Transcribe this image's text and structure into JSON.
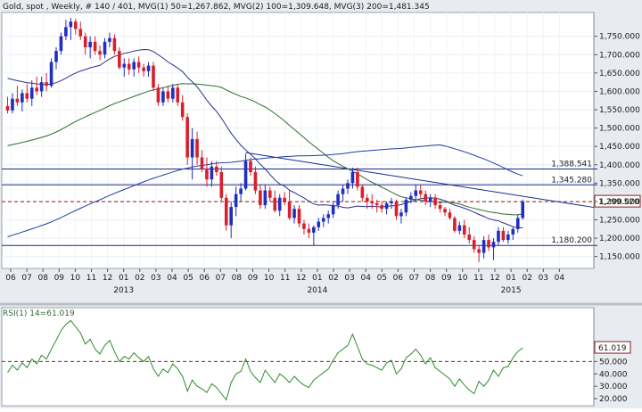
{
  "header": {
    "title": "Gold, spot , Weekly, # 140 / 401, MVG(1) 50=1,267.862, MVG(2) 100=1,309.648, MVG(3) 200=1,481.345",
    "rsi_title": "RSI(1) 14=61.019"
  },
  "colors": {
    "up": "#1f2fbf",
    "down": "#d81f2b",
    "ma50": "#2a2f8f",
    "ma100": "#2f6b2f",
    "ma200": "#1f3fa0",
    "hline": "#1c2a8c",
    "dash": "#8a1f1f",
    "rsi": "#2d8a2d"
  },
  "chart_data": [
    {
      "type": "candlestick",
      "title": "Gold, spot , Weekly",
      "ylim": [
        1120,
        1810
      ],
      "y_ticks": [
        "1,750.000",
        "1,700.000",
        "1,650.000",
        "1,600.000",
        "1,550.000",
        "1,500.000",
        "1,450.000",
        "1,400.000",
        "1,350.000",
        "1,300.000",
        "1,250.000",
        "1,200.000",
        "1,150.000"
      ],
      "y_tick_values": [
        1750,
        1700,
        1650,
        1600,
        1550,
        1500,
        1450,
        1400,
        1350,
        1300,
        1250,
        1200,
        1150
      ],
      "x_month_labels": [
        "06",
        "07",
        "08",
        "09",
        "10",
        "11",
        "12",
        "01",
        "02",
        "03",
        "04",
        "05",
        "06",
        "07",
        "08",
        "09",
        "10",
        "11",
        "12",
        "01",
        "02",
        "03",
        "04",
        "05",
        "06",
        "07",
        "08",
        "09",
        "10",
        "11",
        "12",
        "01",
        "02",
        "03",
        "04"
      ],
      "x_year_labels": [
        "2013",
        "2014",
        "2015"
      ],
      "x_year_label_month_index": [
        7,
        19,
        31
      ],
      "horizontal_levels": [
        {
          "label": "1,388.541",
          "value": 1388.541
        },
        {
          "label": "1,345.280",
          "value": 1345.28
        },
        {
          "label": "1,180.200",
          "value": 1180.2
        }
      ],
      "current_price_label": "1,299.520",
      "current_price": 1299.52,
      "trendline": {
        "from_week": 49,
        "from_value": 1433,
        "to_week": 110,
        "to_value": 1306
      },
      "ohlc": [
        [
          1560,
          1585,
          1540,
          1548
        ],
        [
          1548,
          1595,
          1540,
          1580
        ],
        [
          1580,
          1615,
          1560,
          1570
        ],
        [
          1570,
          1605,
          1545,
          1595
        ],
        [
          1595,
          1620,
          1570,
          1580
        ],
        [
          1580,
          1630,
          1560,
          1610
        ],
        [
          1610,
          1640,
          1590,
          1600
        ],
        [
          1600,
          1640,
          1585,
          1625
        ],
        [
          1625,
          1650,
          1600,
          1615
        ],
        [
          1615,
          1690,
          1610,
          1680
        ],
        [
          1680,
          1720,
          1660,
          1710
        ],
        [
          1710,
          1760,
          1700,
          1750
        ],
        [
          1750,
          1795,
          1740,
          1775
        ],
        [
          1775,
          1800,
          1740,
          1790
        ],
        [
          1790,
          1798,
          1755,
          1770
        ],
        [
          1770,
          1790,
          1740,
          1750
        ],
        [
          1750,
          1760,
          1700,
          1720
        ],
        [
          1720,
          1750,
          1690,
          1735
        ],
        [
          1735,
          1750,
          1700,
          1710
        ],
        [
          1710,
          1725,
          1685,
          1700
        ],
        [
          1700,
          1745,
          1690,
          1735
        ],
        [
          1735,
          1760,
          1720,
          1745
        ],
        [
          1745,
          1755,
          1700,
          1710
        ],
        [
          1710,
          1720,
          1660,
          1665
        ],
        [
          1665,
          1690,
          1640,
          1675
        ],
        [
          1675,
          1690,
          1645,
          1660
        ],
        [
          1660,
          1690,
          1640,
          1680
        ],
        [
          1680,
          1695,
          1650,
          1665
        ],
        [
          1665,
          1675,
          1640,
          1655
        ],
        [
          1655,
          1680,
          1640,
          1670
        ],
        [
          1670,
          1680,
          1600,
          1610
        ],
        [
          1610,
          1620,
          1560,
          1570
        ],
        [
          1570,
          1610,
          1560,
          1600
        ],
        [
          1600,
          1615,
          1570,
          1580
        ],
        [
          1580,
          1620,
          1570,
          1610
        ],
        [
          1610,
          1620,
          1560,
          1570
        ],
        [
          1570,
          1590,
          1520,
          1530
        ],
        [
          1530,
          1540,
          1400,
          1420
        ],
        [
          1420,
          1500,
          1360,
          1470
        ],
        [
          1470,
          1490,
          1400,
          1420
        ],
        [
          1420,
          1440,
          1380,
          1390
        ],
        [
          1390,
          1420,
          1340,
          1360
        ],
        [
          1360,
          1410,
          1340,
          1395
        ],
        [
          1395,
          1410,
          1370,
          1380
        ],
        [
          1380,
          1395,
          1300,
          1310
        ],
        [
          1310,
          1320,
          1220,
          1235
        ],
        [
          1235,
          1300,
          1200,
          1285
        ],
        [
          1285,
          1340,
          1260,
          1320
        ],
        [
          1320,
          1350,
          1300,
          1335
        ],
        [
          1335,
          1430,
          1330,
          1410
        ],
        [
          1410,
          1420,
          1370,
          1380
        ],
        [
          1380,
          1395,
          1320,
          1330
        ],
        [
          1330,
          1345,
          1280,
          1290
        ],
        [
          1290,
          1345,
          1280,
          1330
        ],
        [
          1330,
          1340,
          1300,
          1310
        ],
        [
          1310,
          1330,
          1270,
          1275
        ],
        [
          1275,
          1320,
          1260,
          1310
        ],
        [
          1310,
          1325,
          1290,
          1300
        ],
        [
          1300,
          1330,
          1250,
          1255
        ],
        [
          1255,
          1290,
          1240,
          1280
        ],
        [
          1280,
          1290,
          1230,
          1240
        ],
        [
          1240,
          1250,
          1210,
          1225
        ],
        [
          1225,
          1240,
          1200,
          1215
        ],
        [
          1215,
          1235,
          1180,
          1230
        ],
        [
          1230,
          1255,
          1220,
          1245
        ],
        [
          1245,
          1265,
          1230,
          1255
        ],
        [
          1255,
          1275,
          1240,
          1265
        ],
        [
          1265,
          1300,
          1255,
          1290
        ],
        [
          1290,
          1330,
          1280,
          1320
        ],
        [
          1320,
          1345,
          1300,
          1335
        ],
        [
          1335,
          1360,
          1320,
          1350
        ],
        [
          1350,
          1392,
          1335,
          1380
        ],
        [
          1380,
          1392,
          1330,
          1340
        ],
        [
          1340,
          1345,
          1300,
          1310
        ],
        [
          1310,
          1320,
          1280,
          1300
        ],
        [
          1300,
          1320,
          1280,
          1295
        ],
        [
          1295,
          1305,
          1270,
          1290
        ],
        [
          1290,
          1300,
          1270,
          1280
        ],
        [
          1280,
          1300,
          1265,
          1295
        ],
        [
          1295,
          1310,
          1280,
          1300
        ],
        [
          1300,
          1305,
          1250,
          1260
        ],
        [
          1260,
          1280,
          1240,
          1270
        ],
        [
          1270,
          1310,
          1260,
          1305
        ],
        [
          1305,
          1325,
          1295,
          1315
        ],
        [
          1315,
          1345,
          1300,
          1330
        ],
        [
          1330,
          1345,
          1310,
          1320
        ],
        [
          1320,
          1330,
          1290,
          1300
        ],
        [
          1300,
          1320,
          1285,
          1310
        ],
        [
          1310,
          1320,
          1280,
          1290
        ],
        [
          1290,
          1300,
          1270,
          1280
        ],
        [
          1280,
          1285,
          1260,
          1270
        ],
        [
          1270,
          1280,
          1250,
          1255
        ],
        [
          1255,
          1260,
          1215,
          1220
        ],
        [
          1220,
          1245,
          1210,
          1235
        ],
        [
          1235,
          1250,
          1200,
          1210
        ],
        [
          1210,
          1230,
          1185,
          1195
        ],
        [
          1195,
          1205,
          1160,
          1170
        ],
        [
          1170,
          1180,
          1135,
          1160
        ],
        [
          1160,
          1205,
          1145,
          1195
        ],
        [
          1195,
          1210,
          1165,
          1175
        ],
        [
          1175,
          1200,
          1140,
          1190
        ],
        [
          1190,
          1230,
          1180,
          1220
        ],
        [
          1220,
          1230,
          1190,
          1195
        ],
        [
          1195,
          1220,
          1185,
          1210
        ],
        [
          1210,
          1230,
          1195,
          1225
        ],
        [
          1225,
          1265,
          1215,
          1255
        ],
        [
          1255,
          1305,
          1250,
          1300
        ]
      ]
    },
    {
      "type": "line",
      "title": "RSI(1) 14=61.019",
      "ylim": [
        15,
        92
      ],
      "y_ticks": [
        "50.000",
        "40.000",
        "30.000",
        "20.000"
      ],
      "y_tick_values": [
        50,
        40,
        30,
        20
      ],
      "reference_line": 50,
      "current_value_label": "61.019",
      "current_value": 61.019,
      "values": [
        41,
        47,
        43,
        49,
        45,
        52,
        48,
        55,
        52,
        60,
        67,
        75,
        80,
        83,
        78,
        73,
        64,
        68,
        60,
        56,
        63,
        67,
        58,
        50,
        54,
        52,
        57,
        53,
        50,
        54,
        44,
        38,
        44,
        41,
        48,
        44,
        38,
        26,
        35,
        30,
        28,
        25,
        32,
        29,
        24,
        19,
        33,
        40,
        42,
        52,
        42,
        37,
        33,
        43,
        38,
        33,
        40,
        37,
        33,
        38,
        34,
        31,
        29,
        35,
        38,
        41,
        44,
        51,
        57,
        60,
        63,
        72,
        62,
        52,
        48,
        47,
        45,
        43,
        49,
        51,
        40,
        44,
        53,
        56,
        60,
        55,
        48,
        53,
        45,
        42,
        39,
        36,
        30,
        36,
        31,
        27,
        24,
        34,
        30,
        35,
        43,
        38,
        45,
        46,
        53,
        58,
        61
      ]
    }
  ]
}
